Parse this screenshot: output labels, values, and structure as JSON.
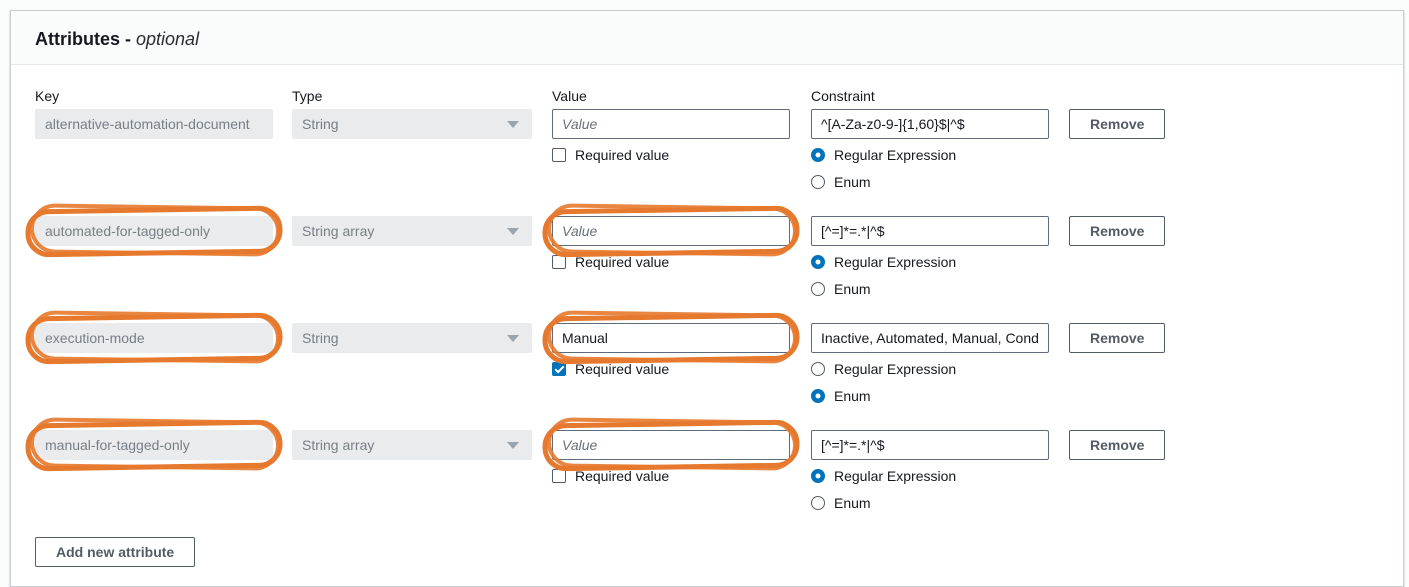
{
  "panel": {
    "title": "Attributes -",
    "title_suffix": "optional"
  },
  "columns": {
    "key": "Key",
    "type": "Type",
    "value": "Value",
    "constraint": "Constraint"
  },
  "labels": {
    "value_placeholder": "Value",
    "required_value": "Required value",
    "regular_expression": "Regular Expression",
    "enum": "Enum",
    "remove": "Remove",
    "add_new_attribute": "Add new attribute"
  },
  "colors": {
    "accent_blue": "#0073bb",
    "annotation_orange": "#e5792e",
    "disabled_bg": "#e9ebed"
  },
  "rows": [
    {
      "key": "alternative-automation-document",
      "type": "String",
      "value": "",
      "required": false,
      "constraint": "^[A-Za-z0-9-]{1,60}$|^$",
      "constraint_mode": "Regular Expression",
      "key_circled": false,
      "value_circled": false
    },
    {
      "key": "automated-for-tagged-only",
      "type": "String array",
      "value": "",
      "required": false,
      "constraint": "[^=]*=.*|^$",
      "constraint_mode": "Regular Expression",
      "key_circled": true,
      "value_circled": true
    },
    {
      "key": "execution-mode",
      "type": "String",
      "value": "Manual",
      "required": true,
      "constraint": "Inactive, Automated, Manual, Cond",
      "constraint_mode": "Enum",
      "key_circled": true,
      "value_circled": true
    },
    {
      "key": "manual-for-tagged-only",
      "type": "String array",
      "value": "",
      "required": false,
      "constraint": "[^=]*=.*|^$",
      "constraint_mode": "Regular Expression",
      "key_circled": true,
      "value_circled": true
    }
  ]
}
